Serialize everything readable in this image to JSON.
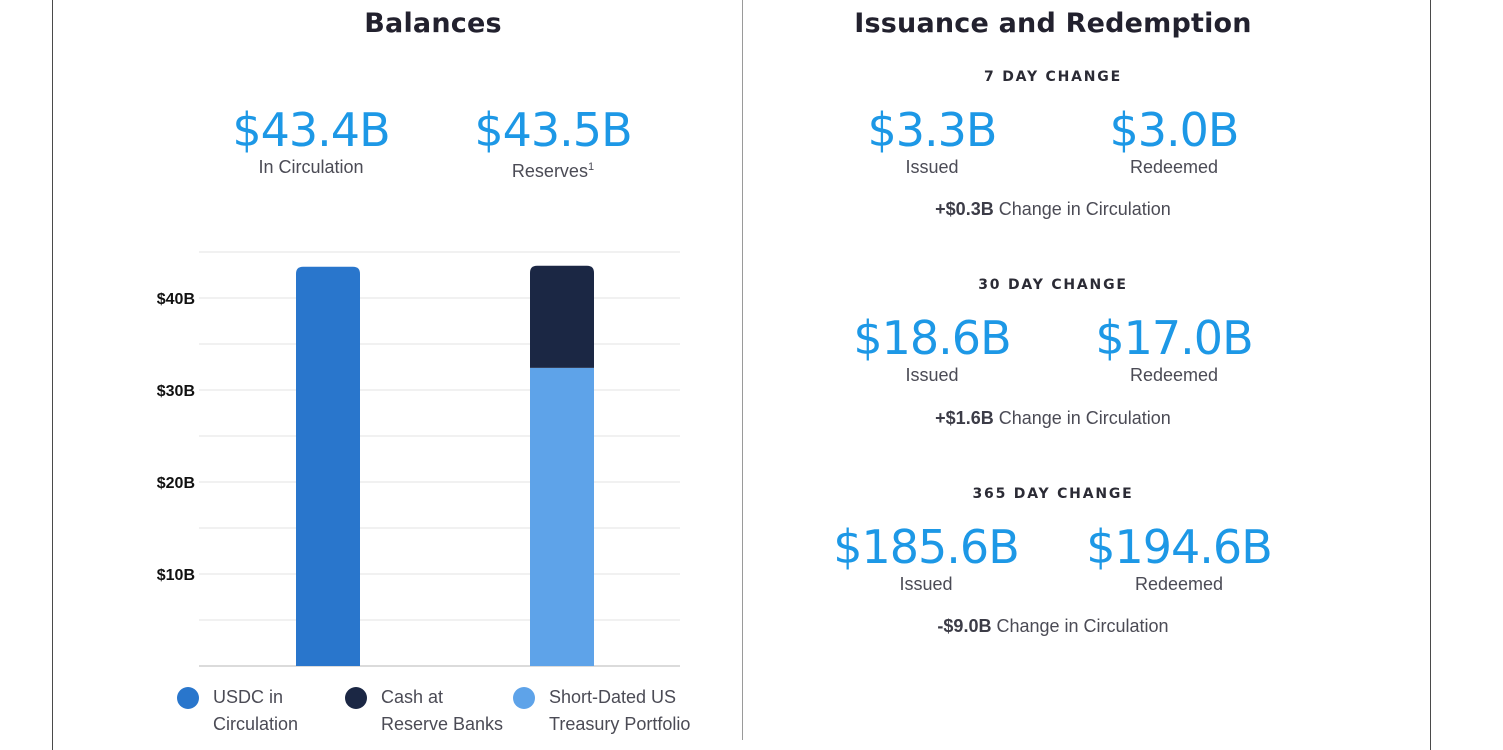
{
  "balances": {
    "title": "Balances",
    "in_circulation": {
      "value": "$43.4B",
      "label": "In Circulation"
    },
    "reserves": {
      "value": "$43.5B",
      "label": "Reserves",
      "footnote": "1"
    }
  },
  "chart_data": {
    "type": "bar",
    "stacked": true,
    "title": "",
    "xlabel": "",
    "ylabel": "",
    "ylim": [
      0,
      45
    ],
    "yticks": [
      10,
      20,
      30,
      40
    ],
    "ytick_labels": [
      "$10B",
      "$20B",
      "$30B",
      "$40B"
    ],
    "grid": true,
    "categories": [
      "In Circulation",
      "Reserves"
    ],
    "series": [
      {
        "name": "USDC in Circulation",
        "color": "#2976cc",
        "values": [
          43.4,
          0
        ]
      },
      {
        "name": "Short-Dated US Treasury Portfolio",
        "color": "#5ea3e9",
        "values": [
          0,
          32.4
        ]
      },
      {
        "name": "Cash at Reserve Banks",
        "color": "#1b2744",
        "values": [
          0,
          11.1
        ]
      }
    ]
  },
  "legend": [
    {
      "line1": "USDC in",
      "line2": "Circulation",
      "color": "#2976cc"
    },
    {
      "line1": "Cash at",
      "line2": "Reserve Banks",
      "color": "#1b2744"
    },
    {
      "line1": "Short-Dated US",
      "line2": "Treasury Portfolio",
      "color": "#5ea3e9"
    }
  ],
  "issuance": {
    "title": "Issuance and Redemption",
    "periods": [
      {
        "heading": "7 DAY CHANGE",
        "issued": {
          "value": "$3.3B",
          "label": "Issued"
        },
        "redeemed": {
          "value": "$3.0B",
          "label": "Redeemed"
        },
        "change_amount": "+$0.3B",
        "change_label": "Change in Circulation"
      },
      {
        "heading": "30 DAY CHANGE",
        "issued": {
          "value": "$18.6B",
          "label": "Issued"
        },
        "redeemed": {
          "value": "$17.0B",
          "label": "Redeemed"
        },
        "change_amount": "+$1.6B",
        "change_label": "Change in Circulation"
      },
      {
        "heading": "365 DAY CHANGE",
        "issued": {
          "value": "$185.6B",
          "label": "Issued"
        },
        "redeemed": {
          "value": "$194.6B",
          "label": "Redeemed"
        },
        "change_amount": "-$9.0B",
        "change_label": "Change in Circulation"
      }
    ]
  },
  "colors": {
    "accent": "#1d98e6",
    "title": "#22212e",
    "grid": "#e3e3e3"
  }
}
